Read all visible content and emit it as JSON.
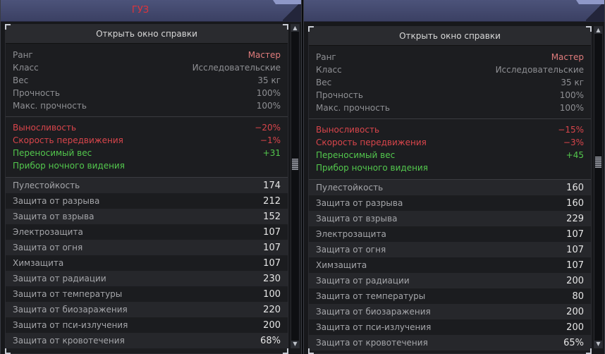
{
  "panels": [
    {
      "title": "ГУЗ",
      "help_button": "Открыть окно справки",
      "info": [
        {
          "label": "Ранг",
          "value": "Мастер"
        },
        {
          "label": "Класс",
          "value": "Исследовательские"
        },
        {
          "label": "Вес",
          "value": "35 кг"
        },
        {
          "label": "Прочность",
          "value": "100%"
        },
        {
          "label": "Макс. прочность",
          "value": "100%"
        }
      ],
      "modifiers": [
        {
          "label": "Выносливость",
          "value": "−20%"
        },
        {
          "label": "Скорость передвижения",
          "value": "−1%"
        },
        {
          "label": "Переносимый вес",
          "value": "+31"
        },
        {
          "label": "Прибор ночного видения",
          "value": ""
        }
      ],
      "stats": [
        {
          "label": "Пулестойкость",
          "value": "174"
        },
        {
          "label": "Защита от разрыва",
          "value": "212"
        },
        {
          "label": "Защита от взрыва",
          "value": "152"
        },
        {
          "label": "Электрозащита",
          "value": "107"
        },
        {
          "label": "Защита от огня",
          "value": "107"
        },
        {
          "label": "Химзащита",
          "value": "107"
        },
        {
          "label": "Защита от радиации",
          "value": "230"
        },
        {
          "label": "Защита от температуры",
          "value": "100"
        },
        {
          "label": "Защита от биозаражения",
          "value": "220"
        },
        {
          "label": "Защита от пси-излучения",
          "value": "200"
        },
        {
          "label": "Защита от кровотечения",
          "value": "68%"
        }
      ]
    },
    {
      "title": "",
      "help_button": "Открыть окно справки",
      "info": [
        {
          "label": "Ранг",
          "value": "Мастер"
        },
        {
          "label": "Класс",
          "value": "Исследовательские"
        },
        {
          "label": "Вес",
          "value": "35 кг"
        },
        {
          "label": "Прочность",
          "value": "100%"
        },
        {
          "label": "Макс. прочность",
          "value": "100%"
        }
      ],
      "modifiers": [
        {
          "label": "Выносливость",
          "value": "−15%"
        },
        {
          "label": "Скорость передвижения",
          "value": "−3%"
        },
        {
          "label": "Переносимый вес",
          "value": "+45"
        },
        {
          "label": "Прибор ночного видения",
          "value": ""
        }
      ],
      "stats": [
        {
          "label": "Пулестойкость",
          "value": "160"
        },
        {
          "label": "Защита от разрыва",
          "value": "160"
        },
        {
          "label": "Защита от взрыва",
          "value": "229"
        },
        {
          "label": "Электрозащита",
          "value": "107"
        },
        {
          "label": "Защита от огня",
          "value": "107"
        },
        {
          "label": "Химзащита",
          "value": "107"
        },
        {
          "label": "Защита от радиации",
          "value": "200"
        },
        {
          "label": "Защита от температуры",
          "value": "80"
        },
        {
          "label": "Защита от биозаражения",
          "value": "200"
        },
        {
          "label": "Защита от пси-излучения",
          "value": "200"
        },
        {
          "label": "Защита от кровотечения",
          "value": "65%"
        }
      ]
    }
  ],
  "icons": {
    "scroll_up": "scroll-up-arrow-icon",
    "scroll_down": "scroll-down-arrow-icon"
  },
  "colors": {
    "title": "#e0333a",
    "rank": "#e07c7c",
    "negative": "#d9454b",
    "positive": "#53c84d",
    "header": "#4c537a"
  }
}
